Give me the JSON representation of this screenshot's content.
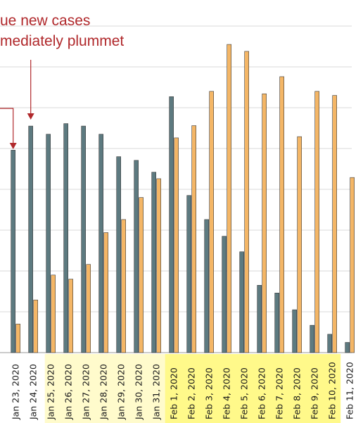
{
  "chart_data": {
    "type": "bar",
    "categories": [
      "Jan 23, 2020",
      "Jan 24, 2020",
      "Jan 25, 2020",
      "Jan 26, 2020",
      "Jan 27, 2020",
      "Jan 28, 2020",
      "Jan 29, 2020",
      "Jan 30, 2020",
      "Jan 31, 2020",
      "Feb 1, 2020",
      "Feb 2, 2020",
      "Feb 3, 2020",
      "Feb 4, 2020",
      "Feb 5, 2020",
      "Feb 6, 2020",
      "Feb 7, 2020",
      "Feb 8, 2020",
      "Feb 9, 2020",
      "Feb 10, 2020",
      "Feb 11, 2020"
    ],
    "series": [
      {
        "color": "#5d7a80",
        "values": [
          49.6,
          55.5,
          53.5,
          56.1,
          55.5,
          53.5,
          48.0,
          47.1,
          44.2,
          62.7,
          38.5,
          32.6,
          28.5,
          24.7,
          16.5,
          14.6,
          10.5,
          6.7,
          4.5,
          2.5
        ]
      },
      {
        "color": "#f4b666",
        "values": [
          7.0,
          12.9,
          19.0,
          18.0,
          21.6,
          29.4,
          32.6,
          38.0,
          42.6,
          52.6,
          55.6,
          64.0,
          75.5,
          73.8,
          63.4,
          67.6,
          52.9,
          64.0,
          63.0,
          42.9
        ]
      }
    ],
    "highlight_color": "#fff98a",
    "highlighted_categories": [
      "Jan 25, 2020",
      "Jan 26, 2020",
      "Jan 27, 2020",
      "Jan 28, 2020",
      "Jan 29, 2020",
      "Jan 30, 2020",
      "Jan 31, 2020",
      "Feb 1, 2020",
      "Feb 2, 2020",
      "Feb 3, 2020",
      "Feb 4, 2020",
      "Feb 5, 2020",
      "Feb 6, 2020",
      "Feb 7, 2020",
      "Feb 8, 2020",
      "Feb 9, 2020",
      "Feb 10, 2020"
    ],
    "highlight_strengths": {
      "Jan 25, 2020": "light",
      "Feb 1, 2020": "strong"
    },
    "ylim": [
      0,
      80
    ],
    "grid": true,
    "annotation": {
      "lines": [
        "ue new cases",
        "mediately plummet"
      ],
      "color": "#b0282b",
      "arrows_to": [
        "Jan 23, 2020",
        "Jan 24, 2020"
      ]
    }
  }
}
